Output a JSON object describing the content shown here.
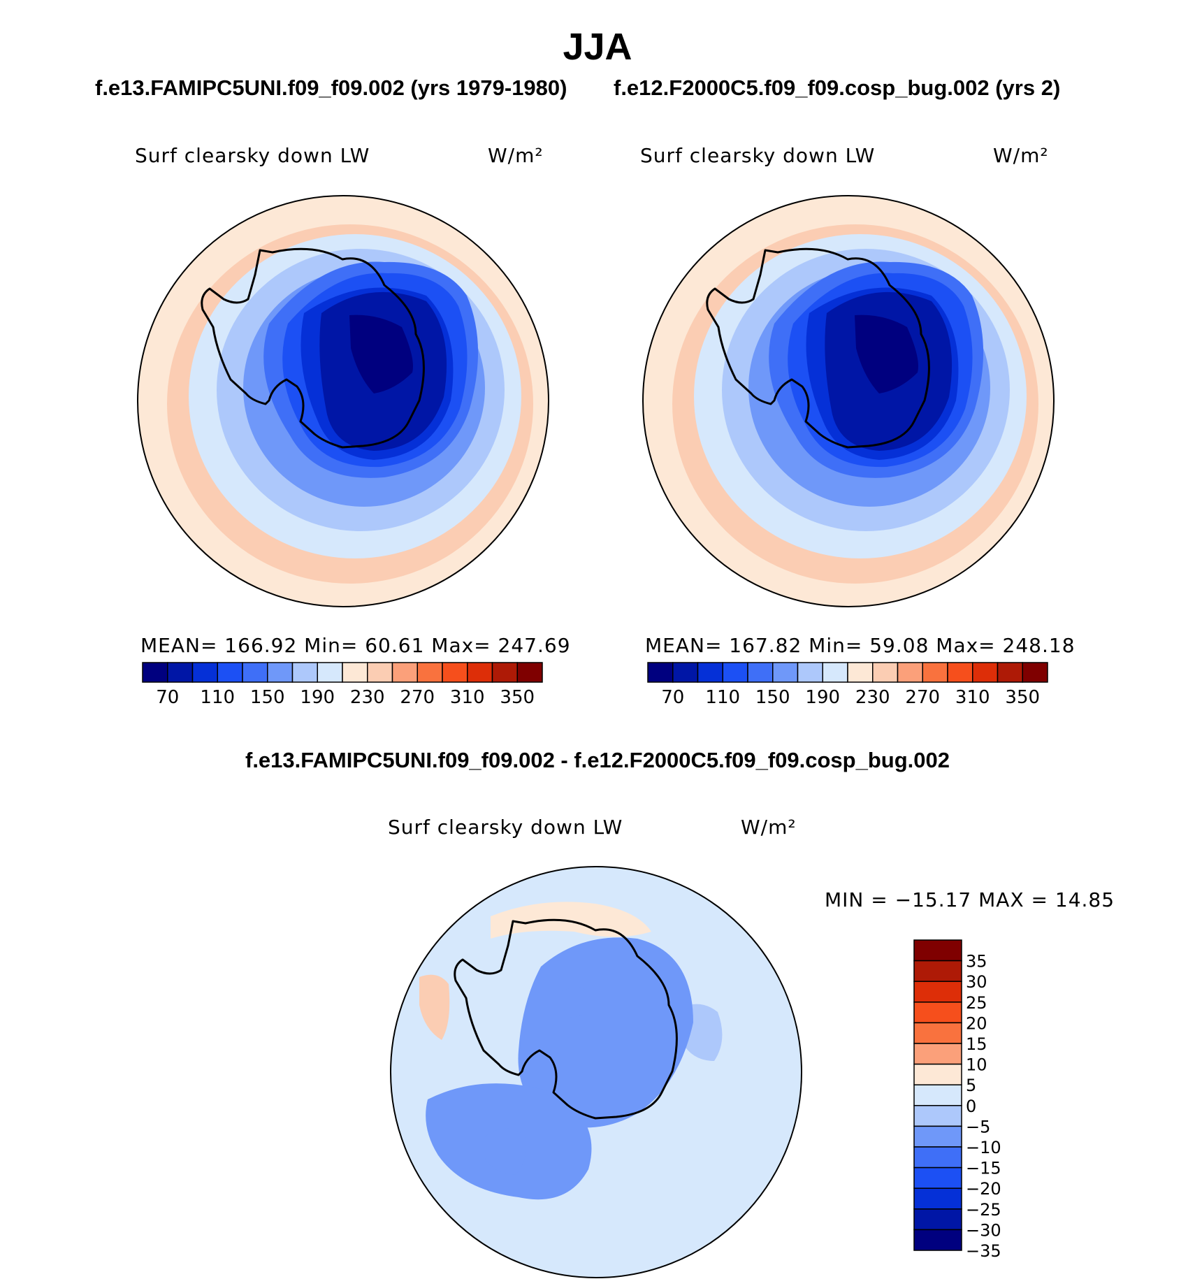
{
  "page_title": "JJA",
  "panels": [
    {
      "case_title": "f.e13.FAMIPC5UNI.f09_f09.002 (yrs 1979-1980)",
      "variable": "Surf clearsky down LW",
      "units": "W/m²",
      "stats": "MEAN=  166.92   Min=    60.61    Max=  247.69"
    },
    {
      "case_title": "f.e12.F2000C5.f09_f09.cosp_bug.002 (yrs 2)",
      "variable": "Surf clearsky down LW",
      "units": "W/m²",
      "stats": "MEAN=  167.82   Min=    59.08    Max=  248.18"
    }
  ],
  "diff_panel": {
    "title": "f.e13.FAMIPC5UNI.f09_f09.002 - f.e12.F2000C5.f09_f09.cosp_bug.002",
    "variable": "Surf clearsky down LW",
    "units": "W/m²",
    "stats": "MIN = −15.17 MAX =   14.85"
  },
  "chart_data": [
    {
      "type": "heatmap",
      "projection": "south-polar-stereographic",
      "title": "Surf clearsky down LW",
      "units": "W/m²",
      "summary": {
        "mean": 166.92,
        "min": 60.61,
        "max": 247.69
      },
      "colorbar": {
        "orientation": "horizontal",
        "tick_labels": [
          "70",
          "110",
          "150",
          "190",
          "230",
          "270",
          "310",
          "350"
        ],
        "levels": [
          70,
          90,
          110,
          130,
          150,
          170,
          190,
          210,
          230,
          250,
          270,
          290,
          310,
          330,
          350
        ],
        "colors": [
          "#00007f",
          "#0016a6",
          "#0530d7",
          "#1c50f4",
          "#3f6ff7",
          "#6f98f9",
          "#adc8fb",
          "#d6e8fc",
          "#fde8d6",
          "#fbcdb3",
          "#fba07a",
          "#f9723e",
          "#f64f1c",
          "#dd2e08",
          "#ae1a06",
          "#7f0000"
        ]
      },
      "contour_bands": [
        {
          "level": "230-250",
          "color": "#fde8d6"
        },
        {
          "level": "250-270",
          "color": "#fbcdb3"
        },
        {
          "level": "210-230",
          "color": "#d6e8fc"
        },
        {
          "level": "190-210",
          "color": "#adc8fb"
        },
        {
          "level": "170-190",
          "color": "#6f98f9"
        },
        {
          "level": "150-170",
          "color": "#3f6ff7"
        },
        {
          "level": "130-150",
          "color": "#1c50f4"
        },
        {
          "level": "110-130",
          "color": "#0530d7"
        },
        {
          "level": "90-110",
          "color": "#0016a6"
        },
        {
          "level": "60-90",
          "color": "#00007f"
        }
      ]
    },
    {
      "type": "heatmap",
      "projection": "south-polar-stereographic",
      "title": "Surf clearsky down LW",
      "units": "W/m²",
      "summary": {
        "mean": 167.82,
        "min": 59.08,
        "max": 248.18
      },
      "colorbar": {
        "orientation": "horizontal",
        "tick_labels": [
          "70",
          "110",
          "150",
          "190",
          "230",
          "270",
          "310",
          "350"
        ],
        "levels": [
          70,
          90,
          110,
          130,
          150,
          170,
          190,
          210,
          230,
          250,
          270,
          290,
          310,
          330,
          350
        ],
        "colors": [
          "#00007f",
          "#0016a6",
          "#0530d7",
          "#1c50f4",
          "#3f6ff7",
          "#6f98f9",
          "#adc8fb",
          "#d6e8fc",
          "#fde8d6",
          "#fbcdb3",
          "#fba07a",
          "#f9723e",
          "#f64f1c",
          "#dd2e08",
          "#ae1a06",
          "#7f0000"
        ]
      },
      "contour_bands": [
        {
          "level": "230-250",
          "color": "#fde8d6"
        },
        {
          "level": "250-270",
          "color": "#fbcdb3"
        },
        {
          "level": "210-230",
          "color": "#d6e8fc"
        },
        {
          "level": "190-210",
          "color": "#adc8fb"
        },
        {
          "level": "170-190",
          "color": "#6f98f9"
        },
        {
          "level": "150-170",
          "color": "#3f6ff7"
        },
        {
          "level": "130-150",
          "color": "#1c50f4"
        },
        {
          "level": "110-130",
          "color": "#0530d7"
        },
        {
          "level": "90-110",
          "color": "#0016a6"
        },
        {
          "level": "60-90",
          "color": "#00007f"
        }
      ]
    },
    {
      "type": "heatmap",
      "projection": "south-polar-stereographic",
      "title": "Surf clearsky down LW",
      "units": "W/m²",
      "summary": {
        "min": -15.17,
        "max": 14.85
      },
      "colorbar": {
        "orientation": "vertical",
        "tick_labels": [
          "35",
          "30",
          "25",
          "20",
          "15",
          "10",
          "5",
          "0",
          "−5",
          "−10",
          "−15",
          "−20",
          "−25",
          "−30",
          "−35"
        ],
        "levels": [
          35,
          30,
          25,
          20,
          15,
          10,
          5,
          0,
          -5,
          -10,
          -15,
          -20,
          -25,
          -30,
          -35
        ],
        "colors": [
          "#7f0000",
          "#ae1a06",
          "#dd2e08",
          "#f64f1c",
          "#f9723e",
          "#fba07a",
          "#fde8d6",
          "#d6e8fc",
          "#adc8fb",
          "#6f98f9",
          "#3f6ff7",
          "#1c50f4",
          "#0530d7",
          "#0016a6",
          "#00007f"
        ]
      },
      "contour_bands": [
        {
          "level": "-5-0",
          "color": "#d6e8fc"
        },
        {
          "level": "0-5",
          "color": "#fde8d6"
        },
        {
          "level": "5-10",
          "color": "#fbcdb3"
        },
        {
          "level": "-10--5",
          "color": "#adc8fb"
        },
        {
          "level": "-15--10",
          "color": "#6f98f9"
        }
      ]
    }
  ]
}
